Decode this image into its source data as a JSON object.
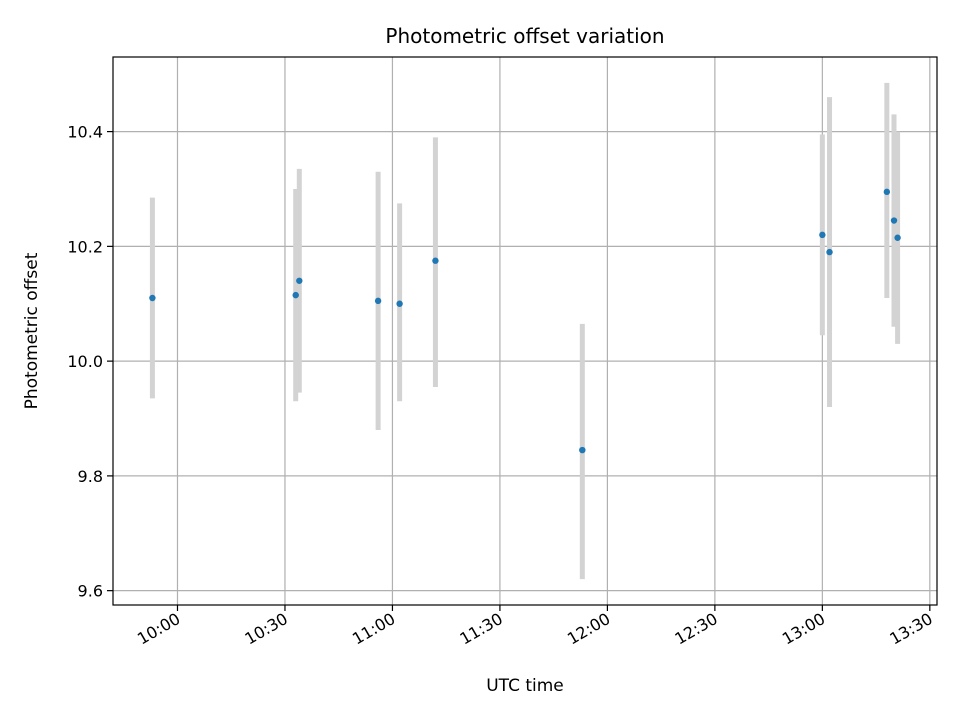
{
  "chart_data": {
    "type": "scatter",
    "title": "Photometric offset variation",
    "xlabel": "UTC time",
    "ylabel": "Photometric offset",
    "x_axis_type": "time",
    "xlim": [
      "09:42",
      "13:32"
    ],
    "ylim": [
      9.575,
      10.53
    ],
    "grid": true,
    "x_ticks": [
      "10:00",
      "10:30",
      "11:00",
      "11:30",
      "12:00",
      "12:30",
      "13:00",
      "13:30"
    ],
    "y_ticks": [
      "9.6",
      "9.8",
      "10.0",
      "10.2",
      "10.4"
    ],
    "y_tick_values": [
      9.6,
      9.8,
      10.0,
      10.2,
      10.4
    ],
    "point_color": "#1f77b4",
    "errorbar_color": "#d3d3d3",
    "points": [
      {
        "x": "09:53",
        "y": 10.11,
        "yerr_low": 9.935,
        "yerr_high": 10.285
      },
      {
        "x": "10:33",
        "y": 10.115,
        "yerr_low": 9.93,
        "yerr_high": 10.3
      },
      {
        "x": "10:34",
        "y": 10.14,
        "yerr_low": 9.945,
        "yerr_high": 10.335
      },
      {
        "x": "10:56",
        "y": 10.105,
        "yerr_low": 9.88,
        "yerr_high": 10.33
      },
      {
        "x": "11:02",
        "y": 10.1,
        "yerr_low": 9.93,
        "yerr_high": 10.275
      },
      {
        "x": "11:12",
        "y": 10.175,
        "yerr_low": 9.955,
        "yerr_high": 10.39
      },
      {
        "x": "11:53",
        "y": 9.845,
        "yerr_low": 9.62,
        "yerr_high": 10.065
      },
      {
        "x": "13:00",
        "y": 10.22,
        "yerr_low": 10.045,
        "yerr_high": 10.395
      },
      {
        "x": "13:02",
        "y": 10.19,
        "yerr_low": 9.92,
        "yerr_high": 10.46
      },
      {
        "x": "13:18",
        "y": 10.295,
        "yerr_low": 10.11,
        "yerr_high": 10.485
      },
      {
        "x": "13:20",
        "y": 10.245,
        "yerr_low": 10.06,
        "yerr_high": 10.43
      },
      {
        "x": "13:21",
        "y": 10.215,
        "yerr_low": 10.03,
        "yerr_high": 10.4
      }
    ]
  }
}
